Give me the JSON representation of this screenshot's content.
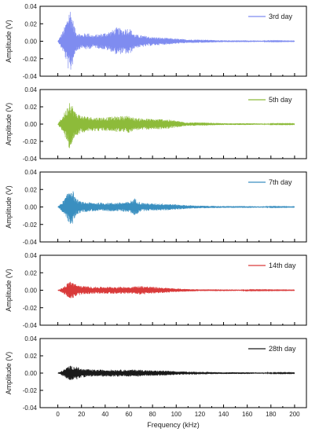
{
  "chart_data": [
    {
      "type": "line",
      "xlabel": "",
      "ylabel": "Amplitude (V)",
      "xlim": [
        -15,
        210
      ],
      "ylim": [
        -0.04,
        0.04
      ],
      "yticks": [
        "0.04",
        "0.02",
        "0.00",
        "-0.02",
        "-0.04"
      ],
      "legend_position": "top-right",
      "series": [
        {
          "name": "3rd day",
          "color": "#7f8cf0",
          "x": [
            0,
            5,
            8,
            10,
            12,
            15,
            20,
            25,
            30,
            40,
            45,
            50,
            55,
            60,
            65,
            70,
            80,
            90,
            100,
            110,
            120,
            140,
            160,
            180,
            200
          ],
          "y": [
            0.0,
            0.014,
            0.027,
            -0.04,
            0.03,
            0.012,
            0.008,
            0.01,
            0.007,
            0.01,
            0.012,
            0.016,
            0.014,
            0.016,
            0.008,
            0.007,
            0.005,
            0.004,
            0.003,
            0.002,
            0.002,
            0.001,
            0.001,
            0.0005,
            0.0003
          ]
        }
      ]
    },
    {
      "type": "line",
      "xlabel": "",
      "ylabel": "Amplitude (V)",
      "xlim": [
        -15,
        210
      ],
      "ylim": [
        -0.04,
        0.04
      ],
      "yticks": [
        "0.04",
        "0.02",
        "0.00",
        "-0.02",
        "-0.04"
      ],
      "legend_position": "top-right",
      "series": [
        {
          "name": "5th day",
          "color": "#8dbb3a",
          "x": [
            0,
            5,
            8,
            10,
            12,
            15,
            20,
            25,
            30,
            40,
            50,
            60,
            65,
            70,
            80,
            90,
            100,
            110,
            120,
            140,
            160,
            180,
            200
          ],
          "y": [
            0.0,
            0.012,
            0.02,
            -0.03,
            0.023,
            0.014,
            0.01,
            0.009,
            0.008,
            0.008,
            0.009,
            0.01,
            0.007,
            0.007,
            0.006,
            0.006,
            0.004,
            0.002,
            0.002,
            0.001,
            0.001,
            0.0005,
            0.0004
          ]
        }
      ]
    },
    {
      "type": "line",
      "xlabel": "",
      "ylabel": "Amplitude (V)",
      "xlim": [
        -15,
        210
      ],
      "ylim": [
        -0.04,
        0.04
      ],
      "yticks": [
        "0.04",
        "0.02",
        "0.00",
        "-0.02",
        "-0.04"
      ],
      "legend_position": "top-right",
      "series": [
        {
          "name": "7th day",
          "color": "#3a8fc0",
          "x": [
            0,
            5,
            8,
            10,
            12,
            15,
            20,
            30,
            40,
            50,
            60,
            65,
            70,
            80,
            90,
            100,
            110,
            120,
            140,
            160,
            180,
            200
          ],
          "y": [
            0.0,
            0.008,
            0.015,
            0.022,
            -0.022,
            0.01,
            0.006,
            0.005,
            0.005,
            0.005,
            0.006,
            0.01,
            0.005,
            0.004,
            0.004,
            0.003,
            0.002,
            0.0015,
            0.001,
            0.001,
            0.0005,
            0.0003
          ]
        }
      ]
    },
    {
      "type": "line",
      "xlabel": "",
      "ylabel": "Amplitude (V)",
      "xlim": [
        -15,
        210
      ],
      "ylim": [
        -0.04,
        0.04
      ],
      "yticks": [
        "0.04",
        "0.02",
        "0.00",
        "-0.02",
        "-0.04"
      ],
      "legend_position": "top-right",
      "series": [
        {
          "name": "14th day",
          "color": "#d93a3a",
          "x": [
            0,
            5,
            8,
            10,
            12,
            15,
            20,
            30,
            40,
            50,
            60,
            70,
            80,
            90,
            100,
            120,
            140,
            160,
            180,
            200
          ],
          "y": [
            0.0,
            0.004,
            0.008,
            0.011,
            -0.01,
            0.007,
            0.005,
            0.004,
            0.004,
            0.004,
            0.004,
            0.005,
            0.004,
            0.003,
            0.002,
            0.001,
            0.001,
            0.0005,
            0.0004,
            0.0003
          ]
        }
      ]
    },
    {
      "type": "line",
      "xlabel": "Frequency (kHz)",
      "ylabel": "Amplitude (V)",
      "xlim": [
        -15,
        210
      ],
      "ylim": [
        -0.04,
        0.04
      ],
      "yticks": [
        "0.04",
        "0.02",
        "0.00",
        "-0.02",
        "-0.04"
      ],
      "xticks": [
        "0",
        "20",
        "40",
        "60",
        "80",
        "100",
        "120",
        "140",
        "160",
        "180",
        "200"
      ],
      "legend_position": "top-right",
      "series": [
        {
          "name": "28th day",
          "color": "#1a1a1a",
          "x": [
            0,
            5,
            8,
            10,
            12,
            15,
            20,
            30,
            40,
            50,
            60,
            70,
            80,
            90,
            100,
            120,
            140,
            160,
            180,
            200
          ],
          "y": [
            0.0,
            0.004,
            0.007,
            0.009,
            -0.008,
            0.008,
            0.005,
            0.004,
            0.004,
            0.004,
            0.004,
            0.004,
            0.003,
            0.003,
            0.002,
            0.0015,
            0.001,
            0.001,
            0.0005,
            0.0004
          ]
        }
      ]
    }
  ]
}
